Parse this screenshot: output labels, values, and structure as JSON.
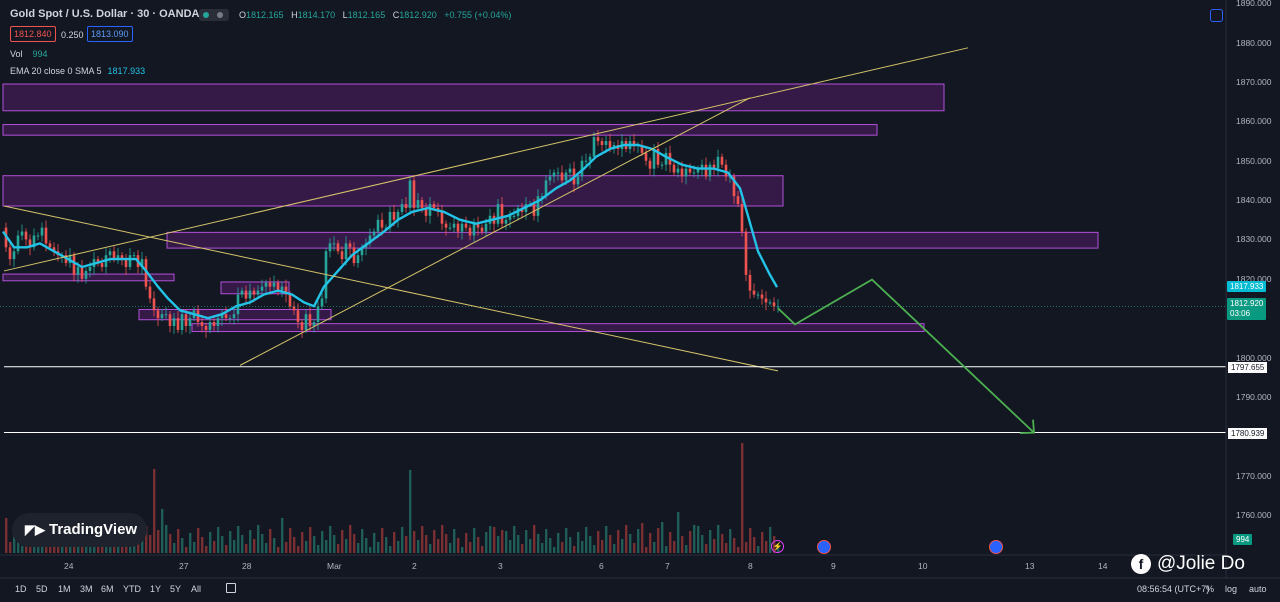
{
  "header": {
    "title": "Gold Spot / U.S. Dollar · 30 · OANDA",
    "ohlc": [
      {
        "key": "O",
        "value": "1812.165"
      },
      {
        "key": "H",
        "value": "1814.170"
      },
      {
        "key": "L",
        "value": "1812.165"
      },
      {
        "key": "C",
        "value": "1812.920"
      }
    ],
    "change": "+0.755 (+0.04%)",
    "sell_price": "1812.840",
    "spread": "0.250",
    "buy_price": "1813.090",
    "vol_label": "Vol",
    "vol_value": "994",
    "ema_label": "EMA 20 close 0 SMA 5",
    "ema_value": "1817.933"
  },
  "chart_data": {
    "type": "candlestick",
    "symbol": "Gold Spot / U.S. Dollar",
    "interval": "30",
    "ylim": [
      1757,
      1891
    ],
    "y_ticks": [
      "1890.000",
      "1880.000",
      "1870.000",
      "1860.000",
      "1850.000",
      "1840.000",
      "1830.000",
      "1820.000",
      "1800.000",
      "1790.000",
      "1770.000",
      "1760.000"
    ],
    "x_ticks": [
      "24",
      "27",
      "28",
      "Mar",
      "2",
      "3",
      "6",
      "7",
      "8",
      "9",
      "10",
      "13",
      "14"
    ],
    "price_series": [
      [
        0,
        1833
      ],
      [
        4,
        1828
      ],
      [
        8,
        1825
      ],
      [
        12,
        1827
      ],
      [
        16,
        1831
      ],
      [
        20,
        1832
      ],
      [
        24,
        1830
      ],
      [
        28,
        1828
      ],
      [
        32,
        1831
      ],
      [
        36,
        1831
      ],
      [
        40,
        1833
      ],
      [
        44,
        1829
      ],
      [
        48,
        1828
      ],
      [
        52,
        1827
      ],
      [
        56,
        1826
      ],
      [
        60,
        1826
      ],
      [
        64,
        1824
      ],
      [
        68,
        1826
      ],
      [
        72,
        1821
      ],
      [
        76,
        1823
      ],
      [
        80,
        1820
      ],
      [
        84,
        1822
      ],
      [
        88,
        1823
      ],
      [
        92,
        1825
      ],
      [
        96,
        1824
      ],
      [
        100,
        1823
      ],
      [
        104,
        1826
      ],
      [
        108,
        1827
      ],
      [
        112,
        1825
      ],
      [
        116,
        1826
      ],
      [
        120,
        1825
      ],
      [
        124,
        1823
      ],
      [
        128,
        1826
      ],
      [
        132,
        1826
      ],
      [
        136,
        1823
      ],
      [
        140,
        1825
      ],
      [
        144,
        1818
      ],
      [
        148,
        1815
      ],
      [
        152,
        1812
      ],
      [
        156,
        1810
      ],
      [
        160,
        1811
      ],
      [
        164,
        1811
      ],
      [
        168,
        1808
      ],
      [
        172,
        1810
      ],
      [
        176,
        1807
      ],
      [
        180,
        1811
      ],
      [
        184,
        1808
      ],
      [
        188,
        1810
      ],
      [
        192,
        1812
      ],
      [
        196,
        1809
      ],
      [
        200,
        1808
      ],
      [
        204,
        1807
      ],
      [
        208,
        1809
      ],
      [
        212,
        1808
      ],
      [
        216,
        1810
      ],
      [
        220,
        1811
      ],
      [
        224,
        1810
      ],
      [
        228,
        1810
      ],
      [
        232,
        1811
      ],
      [
        236,
        1816
      ],
      [
        240,
        1817
      ],
      [
        244,
        1815
      ],
      [
        248,
        1817
      ],
      [
        252,
        1816
      ],
      [
        256,
        1817
      ],
      [
        260,
        1818
      ],
      [
        264,
        1819
      ],
      [
        268,
        1818
      ],
      [
        272,
        1819
      ],
      [
        276,
        1817
      ],
      [
        280,
        1818
      ],
      [
        284,
        1816
      ],
      [
        288,
        1813
      ],
      [
        292,
        1812
      ],
      [
        296,
        1809
      ],
      [
        300,
        1807
      ],
      [
        304,
        1811
      ],
      [
        308,
        1808
      ],
      [
        312,
        1809
      ],
      [
        316,
        1813
      ],
      [
        320,
        1815
      ],
      [
        324,
        1827
      ],
      [
        328,
        1829
      ],
      [
        332,
        1829
      ],
      [
        336,
        1827
      ],
      [
        340,
        1825
      ],
      [
        344,
        1829
      ],
      [
        348,
        1828
      ],
      [
        352,
        1824
      ],
      [
        356,
        1826
      ],
      [
        360,
        1828
      ],
      [
        364,
        1829
      ],
      [
        368,
        1831
      ],
      [
        372,
        1832
      ],
      [
        376,
        1835
      ],
      [
        380,
        1833
      ],
      [
        384,
        1833
      ],
      [
        388,
        1837
      ],
      [
        392,
        1835
      ],
      [
        396,
        1837
      ],
      [
        400,
        1839
      ],
      [
        404,
        1838
      ],
      [
        408,
        1845
      ],
      [
        412,
        1838
      ],
      [
        416,
        1840
      ],
      [
        420,
        1838
      ],
      [
        424,
        1836
      ],
      [
        428,
        1839
      ],
      [
        432,
        1838
      ],
      [
        436,
        1837
      ],
      [
        440,
        1834
      ],
      [
        444,
        1833
      ],
      [
        448,
        1833
      ],
      [
        452,
        1834
      ],
      [
        456,
        1832
      ],
      [
        460,
        1834
      ],
      [
        464,
        1833
      ],
      [
        468,
        1831
      ],
      [
        472,
        1834
      ],
      [
        476,
        1833
      ],
      [
        480,
        1832
      ],
      [
        484,
        1834
      ],
      [
        488,
        1836
      ],
      [
        492,
        1834
      ],
      [
        496,
        1839
      ],
      [
        500,
        1834
      ],
      [
        504,
        1835
      ],
      [
        508,
        1836
      ],
      [
        512,
        1836
      ],
      [
        516,
        1838
      ],
      [
        520,
        1837
      ],
      [
        524,
        1839
      ],
      [
        528,
        1839
      ],
      [
        532,
        1836
      ],
      [
        536,
        1841
      ],
      [
        540,
        1841
      ],
      [
        544,
        1845
      ],
      [
        548,
        1846
      ],
      [
        552,
        1847
      ],
      [
        556,
        1847
      ],
      [
        560,
        1845
      ],
      [
        564,
        1847
      ],
      [
        568,
        1848
      ],
      [
        572,
        1844
      ],
      [
        576,
        1846
      ],
      [
        580,
        1850
      ],
      [
        584,
        1850
      ],
      [
        588,
        1851
      ],
      [
        592,
        1856
      ],
      [
        596,
        1855
      ],
      [
        600,
        1854
      ],
      [
        604,
        1855
      ],
      [
        608,
        1853
      ],
      [
        612,
        1854
      ],
      [
        616,
        1853
      ],
      [
        620,
        1855
      ],
      [
        624,
        1853
      ],
      [
        628,
        1855
      ],
      [
        632,
        1854
      ],
      [
        636,
        1854
      ],
      [
        640,
        1852
      ],
      [
        644,
        1850
      ],
      [
        648,
        1848
      ],
      [
        652,
        1853
      ],
      [
        656,
        1849
      ],
      [
        660,
        1849
      ],
      [
        664,
        1852
      ],
      [
        668,
        1849
      ],
      [
        672,
        1847
      ],
      [
        676,
        1848
      ],
      [
        680,
        1846
      ],
      [
        684,
        1848
      ],
      [
        688,
        1847
      ],
      [
        692,
        1847
      ],
      [
        696,
        1848
      ],
      [
        700,
        1849
      ],
      [
        704,
        1846
      ],
      [
        708,
        1849
      ],
      [
        712,
        1848
      ],
      [
        716,
        1851
      ],
      [
        720,
        1849
      ],
      [
        724,
        1846
      ],
      [
        728,
        1846
      ],
      [
        732,
        1841
      ],
      [
        736,
        1839
      ],
      [
        740,
        1832
      ],
      [
        744,
        1821
      ],
      [
        748,
        1817
      ],
      [
        752,
        1816
      ],
      [
        756,
        1816
      ],
      [
        760,
        1815
      ],
      [
        764,
        1814
      ],
      [
        768,
        1814
      ],
      [
        772,
        1813
      ],
      [
        776,
        1813
      ]
    ],
    "ema_series": [
      [
        3,
        1832
      ],
      [
        14,
        1828
      ],
      [
        27,
        1828
      ],
      [
        40,
        1829
      ],
      [
        54,
        1827
      ],
      [
        68,
        1825
      ],
      [
        82,
        1823
      ],
      [
        96,
        1824
      ],
      [
        110,
        1825
      ],
      [
        124,
        1825
      ],
      [
        136,
        1825
      ],
      [
        146,
        1822
      ],
      [
        158,
        1818
      ],
      [
        168,
        1815
      ],
      [
        180,
        1812
      ],
      [
        194,
        1811
      ],
      [
        208,
        1810
      ],
      [
        222,
        1811
      ],
      [
        236,
        1813
      ],
      [
        250,
        1814
      ],
      [
        264,
        1816
      ],
      [
        278,
        1817
      ],
      [
        292,
        1816
      ],
      [
        304,
        1814
      ],
      [
        314,
        1813
      ],
      [
        324,
        1818
      ],
      [
        338,
        1822
      ],
      [
        352,
        1826
      ],
      [
        368,
        1829
      ],
      [
        384,
        1832
      ],
      [
        398,
        1835
      ],
      [
        412,
        1837
      ],
      [
        428,
        1838
      ],
      [
        444,
        1837
      ],
      [
        460,
        1835
      ],
      [
        476,
        1834
      ],
      [
        492,
        1835
      ],
      [
        508,
        1836
      ],
      [
        524,
        1838
      ],
      [
        540,
        1840
      ],
      [
        556,
        1843
      ],
      [
        570,
        1845
      ],
      [
        584,
        1848
      ],
      [
        596,
        1851
      ],
      [
        610,
        1853
      ],
      [
        624,
        1854
      ],
      [
        638,
        1854
      ],
      [
        652,
        1853
      ],
      [
        666,
        1851
      ],
      [
        682,
        1849
      ],
      [
        698,
        1848
      ],
      [
        714,
        1848
      ],
      [
        728,
        1847
      ],
      [
        740,
        1843
      ],
      [
        748,
        1836
      ],
      [
        758,
        1827
      ],
      [
        770,
        1821
      ],
      [
        777,
        1817.9
      ]
    ],
    "volume_spikes": [
      [
        4,
        1
      ],
      [
        150,
        3
      ],
      [
        152,
        5
      ],
      [
        160,
        2
      ],
      [
        183,
        1
      ],
      [
        197,
        1
      ],
      [
        205,
        1
      ],
      [
        280,
        1
      ],
      [
        325,
        2
      ],
      [
        330,
        1
      ],
      [
        345,
        1
      ],
      [
        382,
        1
      ],
      [
        398,
        1
      ],
      [
        405,
        2
      ],
      [
        408,
        5
      ],
      [
        450,
        1
      ],
      [
        488,
        1
      ],
      [
        493,
        2
      ],
      [
        500,
        1
      ],
      [
        575,
        3
      ],
      [
        598,
        2
      ],
      [
        614,
        1
      ],
      [
        640,
        1
      ],
      [
        660,
        1
      ],
      [
        676,
        1
      ],
      [
        692,
        1
      ],
      [
        740,
        6
      ],
      [
        742,
        9
      ],
      [
        747,
        3
      ]
    ],
    "zones": [
      {
        "y1": 1869.5,
        "y2": 1862.7,
        "x2": 944
      },
      {
        "y1": 1859.2,
        "y2": 1856.5,
        "x2": 877
      },
      {
        "y1": 1846.2,
        "y2": 1838.5,
        "x2": 783
      },
      {
        "y1": 1831.8,
        "y2": 1827.8,
        "x2": 1098
      },
      {
        "y1": 1821.2,
        "y2": 1819.5,
        "x2": 174
      },
      {
        "y1": 1819.2,
        "y2": 1816.2,
        "x2": 289
      },
      {
        "y1": 1812.2,
        "y2": 1809.6,
        "x2": 331
      },
      {
        "y1": 1808.6,
        "y2": 1806.6,
        "x2": 924
      }
    ],
    "trendlines": [
      {
        "x1": 4,
        "y1": 1822.0,
        "x2": 968,
        "y2": 1878.7
      },
      {
        "x1": 240,
        "y1": 1798.0,
        "x2": 750,
        "y2": 1866.0
      },
      {
        "x1": 4,
        "y1": 1838.5,
        "x2": 778,
        "y2": 1796.6
      }
    ],
    "horizontal_levels": [
      {
        "value": 1797.655,
        "label": "1797.655"
      },
      {
        "value": 1780.939,
        "label": "1780.939"
      }
    ],
    "projection_path": [
      [
        778,
        1812.5
      ],
      [
        795,
        1808.4
      ],
      [
        872,
        1819.8
      ],
      [
        1034,
        1780.9
      ]
    ],
    "last_price": "1812.920",
    "countdown": "03:06",
    "ema_last": "1817.933",
    "volume_last": "994"
  },
  "footer": {
    "timeframes": [
      "1D",
      "5D",
      "1M",
      "3M",
      "6M",
      "YTD",
      "1Y",
      "5Y",
      "All"
    ],
    "clock": "08:56:54 (UTC+7)",
    "percent": "%",
    "log": "log",
    "auto": "auto"
  },
  "branding": {
    "logo": "TradingView",
    "watermark": "@Jolie Do"
  },
  "colors": {
    "background": "#131722",
    "up": "#26a69a",
    "down": "#ef5350",
    "ema": "#22c3e6",
    "zone": "#8e24aa",
    "trend": "#d5c36a",
    "projection": "#4caf50"
  }
}
